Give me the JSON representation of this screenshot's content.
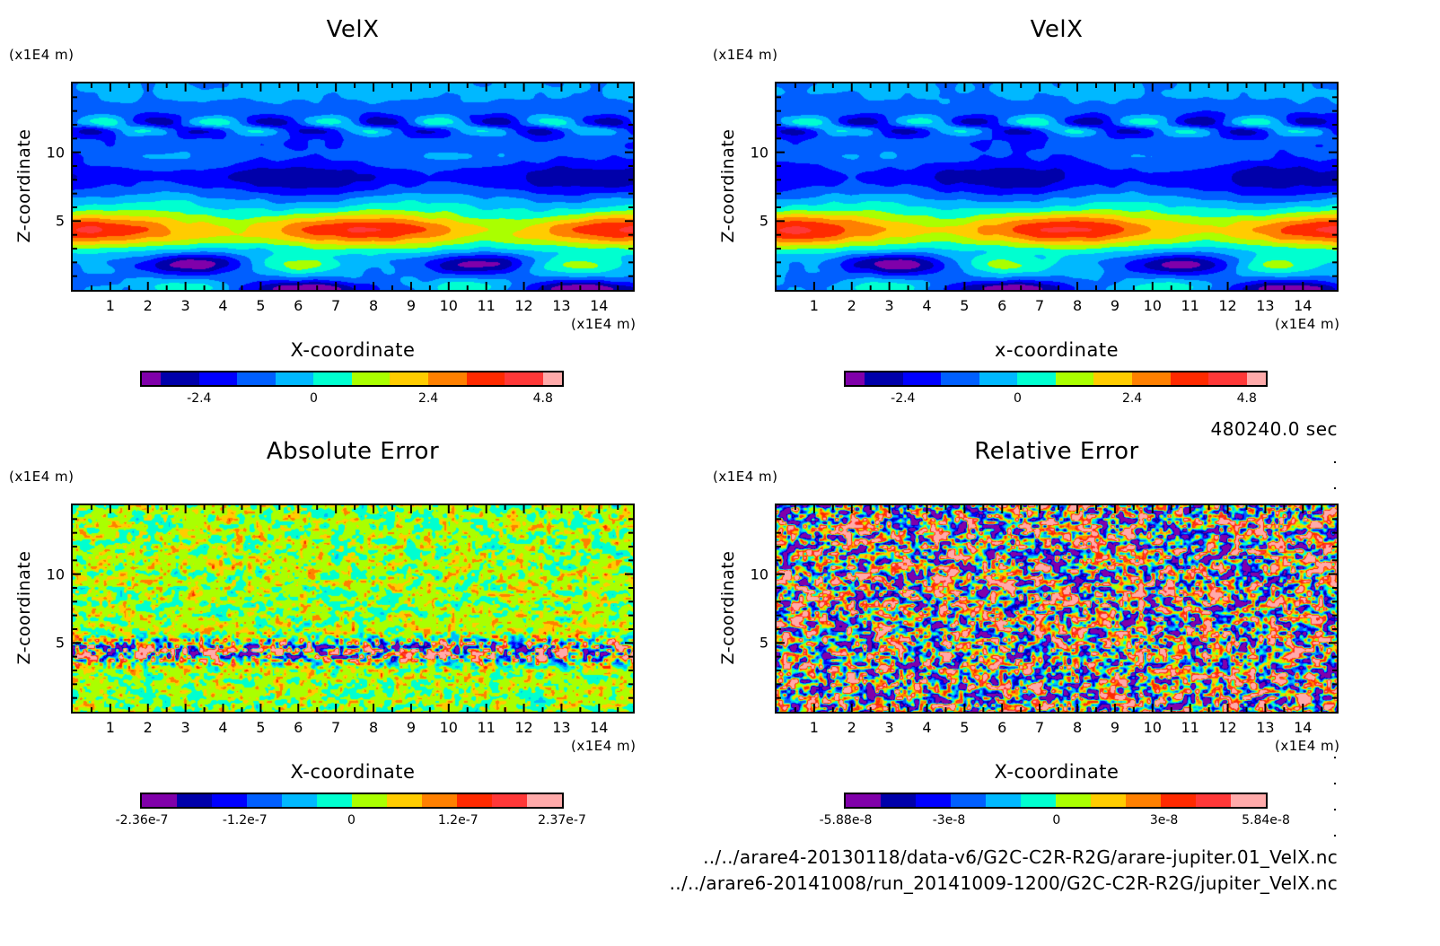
{
  "chart_data": [
    {
      "type": "heatmap",
      "id": "velx-a",
      "title": "VelX",
      "xlabel": "X-coordinate",
      "ylabel": "Z-coordinate",
      "x_unit": "(x1E4 m)",
      "y_unit": "(x1E4 m)",
      "xlim": [
        0,
        14.9
      ],
      "ylim": [
        0,
        15
      ],
      "xticks": [
        1,
        2,
        3,
        4,
        5,
        6,
        7,
        8,
        9,
        10,
        11,
        12,
        13,
        14
      ],
      "yticks": [
        5,
        10
      ],
      "colorbar": {
        "min": -3.6,
        "max": 5.2,
        "ticks": [
          -2.4,
          0,
          2.4,
          4.8
        ],
        "tick_labels": [
          "-2.4",
          "0",
          "2.4",
          "4.8"
        ],
        "levels": [
          -3.6,
          -3.2,
          -2.4,
          -1.6,
          -0.8,
          0,
          0.8,
          1.6,
          2.4,
          3.2,
          4.0,
          4.8,
          5.2
        ]
      },
      "field_model": "zonal-jets",
      "features": "Strong eastward jet (3.2 to 5.2) at z~4-5; westward band (-2.4 to -1.6) at z~8; alternating small eddies (-2.4 to 2.4) at z~12; westward vortices (-3.2) near z~1.5 at x~3,10",
      "legend": "colorbar-bottom"
    },
    {
      "type": "heatmap",
      "id": "velx-b",
      "title": "VelX",
      "xlabel": "x-coordinate",
      "ylabel": "Z-coordinate",
      "x_unit": "(x1E4 m)",
      "y_unit": "(x1E4 m)",
      "xlim": [
        0,
        14.9
      ],
      "ylim": [
        0,
        15
      ],
      "xticks": [
        1,
        2,
        3,
        4,
        5,
        6,
        7,
        8,
        9,
        10,
        11,
        12,
        13,
        14
      ],
      "yticks": [
        5,
        10
      ],
      "colorbar": {
        "min": -3.6,
        "max": 5.2,
        "ticks": [
          -2.4,
          0,
          2.4,
          4.8
        ],
        "tick_labels": [
          "-2.4",
          "0",
          "2.4",
          "4.8"
        ],
        "levels": [
          -3.6,
          -3.2,
          -2.4,
          -1.6,
          -0.8,
          0,
          0.8,
          1.6,
          2.4,
          3.2,
          4.0,
          4.8,
          5.2
        ]
      },
      "field_model": "zonal-jets",
      "features": "Identical to left VelX panel",
      "legend": "colorbar-bottom"
    },
    {
      "type": "heatmap",
      "id": "abs-error",
      "title": "Absolute Error",
      "xlabel": "X-coordinate",
      "ylabel": "Z-coordinate",
      "x_unit": "(x1E4 m)",
      "y_unit": "(x1E4 m)",
      "xlim": [
        0,
        14.9
      ],
      "ylim": [
        0,
        15
      ],
      "xticks": [
        1,
        2,
        3,
        4,
        5,
        6,
        7,
        8,
        9,
        10,
        11,
        12,
        13,
        14
      ],
      "yticks": [
        5,
        10
      ],
      "colorbar": {
        "min": -2.36e-07,
        "max": 2.37e-07,
        "ticks": [
          -2.36e-07,
          -1.2e-07,
          0,
          1.2e-07,
          2.37e-07
        ],
        "tick_labels": [
          "-2.36e-7",
          "-1.2e-7",
          "0",
          "1.2e-7",
          "2.37e-7"
        ]
      },
      "field_model": "noise-with-band",
      "features": "Mostly near-zero noise (aqua / yellow-green); concentrated larger errors (±2e-7) along z~4-5 jet band",
      "legend": "colorbar-bottom"
    },
    {
      "type": "heatmap",
      "id": "rel-error",
      "title": "Relative Error",
      "xlabel": "X-coordinate",
      "ylabel": "Z-coordinate",
      "x_unit": "(x1E4 m)",
      "y_unit": "(x1E4 m)",
      "xlim": [
        0,
        14.9
      ],
      "ylim": [
        0,
        15
      ],
      "xticks": [
        1,
        2,
        3,
        4,
        5,
        6,
        7,
        8,
        9,
        10,
        11,
        12,
        13,
        14
      ],
      "yticks": [
        5,
        10
      ],
      "colorbar": {
        "min": -5.88e-08,
        "max": 5.84e-08,
        "ticks": [
          -5.88e-08,
          -3e-08,
          0,
          3e-08,
          5.84e-08
        ],
        "tick_labels": [
          "-5.88e-8",
          "-3e-8",
          "0",
          "3e-8",
          "5.84e-8"
        ]
      },
      "field_model": "full-noise",
      "features": "Uniform high-contrast noise spanning full color range",
      "legend": "colorbar-bottom"
    }
  ],
  "palette": [
    "#8000AA",
    "#0000AA",
    "#0000FF",
    "#005FFF",
    "#00B8FF",
    "#00FFD0",
    "#AAFF00",
    "#FFCC00",
    "#FF8000",
    "#FF2A00",
    "#FF3838",
    "#FFAAAA"
  ],
  "time_label": "480240.0 sec",
  "files": [
    "../../arare4-20130118/data-v6/G2C-C2R-R2G/arare-jupiter.01_VelX.nc",
    "../../arare6-20141008/run_20141009-1200/G2C-C2R-R2G/jupiter_VelX.nc"
  ]
}
